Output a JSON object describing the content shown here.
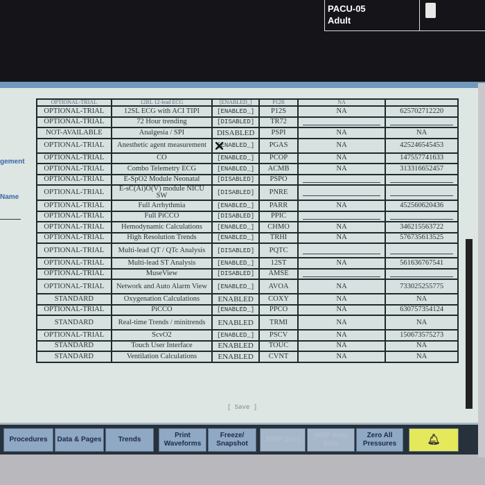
{
  "header": {
    "bed": "PACU-05",
    "patient_type": "Adult",
    "battery_icon": "battery-icon"
  },
  "side_labels": {
    "management": "gement",
    "name": "Name"
  },
  "table": {
    "partial_row": [
      "OPTIONAL-TRIAL",
      "12RL 12-lead ECG",
      "[ENABLED_]",
      "P12R",
      "NA",
      ""
    ],
    "rows": [
      {
        "status": "OPTIONAL-TRIAL",
        "feature": "12SL ECG with ACI TIPI",
        "state": "[ENABLED_]",
        "code": "P12S",
        "col5": "NA",
        "key": "625702712220"
      },
      {
        "status": "OPTIONAL-TRIAL",
        "feature": "72 Hour trending",
        "state": "[DISABLED]",
        "code": "TR72",
        "col5": "",
        "key": ""
      },
      {
        "status": "NOT-AVAILABLE",
        "feature": "Analgesia / SPI",
        "state": "DISABLED",
        "code": "PSPI",
        "col5": "NA",
        "key": "NA"
      },
      {
        "status": "OPTIONAL-TRIAL",
        "feature": "Anesthetic agent measurement",
        "state": "[ENABLED_]",
        "code": "PGAS",
        "col5": "NA",
        "key": "425246545453"
      },
      {
        "status": "OPTIONAL-TRIAL",
        "feature": "CO",
        "state": "[ENABLED_]",
        "code": "PCOP",
        "col5": "NA",
        "key": "147557741633"
      },
      {
        "status": "OPTIONAL-TRIAL",
        "feature": "Combo Telemetry ECG",
        "state": "[ENABLED_]",
        "code": "ACMB",
        "col5": "NA",
        "key": "313316652457"
      },
      {
        "status": "OPTIONAL-TRIAL",
        "feature": "E-SpO2 Module Neonatal",
        "state": "[DISABLED]",
        "code": "PSPO",
        "col5": "",
        "key": ""
      },
      {
        "status": "OPTIONAL-TRIAL",
        "feature": "E-sC(Ai)O(V) module NICU SW",
        "state": "[DISABLED]",
        "code": "PNRE",
        "col5": "",
        "key": ""
      },
      {
        "status": "OPTIONAL-TRIAL",
        "feature": "Full Arrhythmia",
        "state": "[ENABLED_]",
        "code": "PARR",
        "col5": "NA",
        "key": "452560620436"
      },
      {
        "status": "OPTIONAL-TRIAL",
        "feature": "Full PiCCO",
        "state": "[DISABLED]",
        "code": "PPIC",
        "col5": "",
        "key": ""
      },
      {
        "status": "OPTIONAL-TRIAL",
        "feature": "Hemodynamic Calculations",
        "state": "[ENABLED_]",
        "code": "CHMO",
        "col5": "NA",
        "key": "346215563722"
      },
      {
        "status": "OPTIONAL-TRIAL",
        "feature": "High Resolution Trends",
        "state": "[ENABLED_]",
        "code": "TRHI",
        "col5": "NA",
        "key": "576735613525"
      },
      {
        "status": "OPTIONAL-TRIAL",
        "feature": "Multi-lead QT / QTc Analysis",
        "state": "[DISABLED]",
        "code": "PQTC",
        "col5": "",
        "key": ""
      },
      {
        "status": "OPTIONAL-TRIAL",
        "feature": "Multi-lead ST Analysis",
        "state": "[ENABLED_]",
        "code": "12ST",
        "col5": "NA",
        "key": "561636767541"
      },
      {
        "status": "OPTIONAL-TRIAL",
        "feature": "MuseView",
        "state": "[DISABLED]",
        "code": "AMSE",
        "col5": "",
        "key": ""
      },
      {
        "status": "OPTIONAL-TRIAL",
        "feature": "Network and Auto Alarm View",
        "state": "[ENABLED_]",
        "code": "AVOA",
        "col5": "NA",
        "key": "733025255775"
      },
      {
        "status": "STANDARD",
        "feature": "Oxygenation Calculations",
        "state": "ENABLED",
        "code": "COXY",
        "col5": "NA",
        "key": "NA"
      },
      {
        "status": "OPTIONAL-TRIAL",
        "feature": "PiCCO",
        "state": "[ENABLED_]",
        "code": "PPCO",
        "col5": "NA",
        "key": "630757354124"
      },
      {
        "status": "STANDARD",
        "feature": "Real-time Trends / minitrends",
        "state": "ENABLED",
        "code": "TRMI",
        "col5": "NA",
        "key": "NA"
      },
      {
        "status": "OPTIONAL-TRIAL",
        "feature": "ScvO2",
        "state": "[ENABLED_]",
        "code": "PSCV",
        "col5": "NA",
        "key": "150673575273"
      },
      {
        "status": "STANDARD",
        "feature": "Touch User Interface",
        "state": "ENABLED",
        "code": "TOUC",
        "col5": "NA",
        "key": "NA"
      },
      {
        "status": "STANDARD",
        "feature": "Ventilation Calculations",
        "state": "ENABLED",
        "code": "CVNT",
        "col5": "NA",
        "key": "NA"
      }
    ]
  },
  "save_label": "[ Save ]",
  "bottom_bar": {
    "procedures": "Procedures",
    "data_pages": "Data & Pages",
    "trends": "Trends",
    "print_waveforms": "Print Waveforms",
    "freeze_snapshot": "Freeze/ Snapshot",
    "nibp_start": "NIBP Start",
    "nibp_auto_start": "NIBP Auto Start",
    "zero_all_pressures": "Zero All Pressures",
    "alarm_icon": "bell-alarm-icon",
    "alarm_color": "#e5e85a"
  }
}
